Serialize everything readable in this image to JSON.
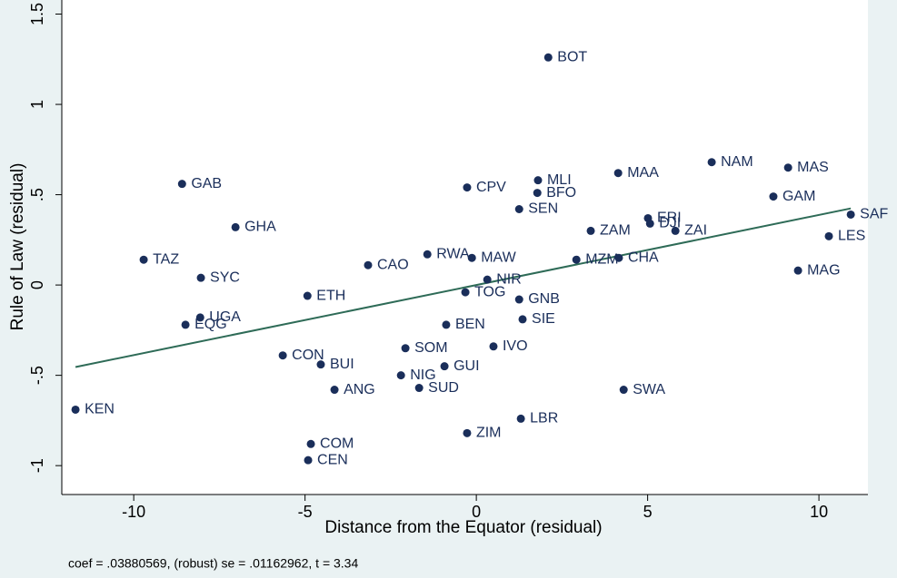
{
  "chart_data": {
    "type": "scatter",
    "x_label": "Distance from the Equator (residual)",
    "y_label": "Rule of Law (residual)",
    "note": "coef = .03880569, (robust) se = .01162962, t = 3.34",
    "color": "#1a2e5a",
    "point_labels": [
      "BOT",
      "NAM",
      "MAS",
      "MAA",
      "MLI",
      "GAB",
      "CPV",
      "BFO",
      "GAM",
      "SEN",
      "SAF",
      "ERI",
      "DJI",
      "GHA",
      "ZAM",
      "ZAI",
      "LES",
      "RWA",
      "MAW",
      "TAZ",
      "MZM",
      "CHA",
      "CAO",
      "MAG",
      "SYC",
      "NIR",
      "TOG",
      "ETH",
      "GNB",
      "UGA",
      "EQG",
      "SIE",
      "BEN",
      "SOM",
      "IVO",
      "CON",
      "BUI",
      "GUI",
      "NIG",
      "ANG",
      "SUD",
      "SWA",
      "KEN",
      "LBR",
      "ZIM",
      "COM",
      "CEN"
    ],
    "x": [
      2.1,
      6.87,
      9.1,
      4.14,
      1.8,
      -8.59,
      -0.27,
      1.78,
      8.67,
      1.25,
      10.93,
      5.01,
      5.07,
      -7.03,
      3.34,
      5.81,
      10.29,
      -1.43,
      -0.13,
      -9.71,
      2.92,
      4.16,
      -3.16,
      9.39,
      -8.04,
      0.32,
      -0.32,
      -4.93,
      1.25,
      -8.06,
      -8.49,
      1.35,
      -0.88,
      -2.07,
      0.5,
      -5.65,
      -4.54,
      -0.93,
      -2.2,
      -4.14,
      -1.67,
      4.3,
      -11.7,
      1.3,
      -0.27,
      -4.83,
      -4.91
    ],
    "values": [
      1.26,
      0.68,
      0.65,
      0.62,
      0.58,
      0.56,
      0.54,
      0.51,
      0.49,
      0.42,
      0.39,
      0.37,
      0.34,
      0.32,
      0.3,
      0.3,
      0.27,
      0.17,
      0.15,
      0.14,
      0.14,
      0.15,
      0.11,
      0.08,
      0.04,
      0.03,
      -0.04,
      -0.06,
      -0.08,
      -0.18,
      -0.22,
      -0.19,
      -0.22,
      -0.35,
      -0.34,
      -0.39,
      -0.44,
      -0.45,
      -0.5,
      -0.58,
      -0.57,
      -0.58,
      -0.69,
      -0.74,
      -0.82,
      -0.88,
      -0.97
    ],
    "fit": {
      "x": [
        -11.7,
        10.93
      ],
      "values": [
        -0.454,
        0.424
      ],
      "color": "#2e6b57"
    },
    "xlim": [
      -12.1,
      11.43
    ],
    "ylim": [
      -1.16,
      1.578
    ],
    "xticks": [
      -10,
      -5,
      0,
      5,
      10
    ],
    "yticks": [
      {
        "value": -1,
        "label": "-1"
      },
      {
        "value": -0.5,
        "label": "-.5"
      },
      0,
      {
        "value": 0.5,
        "label": ".5"
      },
      1,
      1.5
    ],
    "grid": false
  }
}
